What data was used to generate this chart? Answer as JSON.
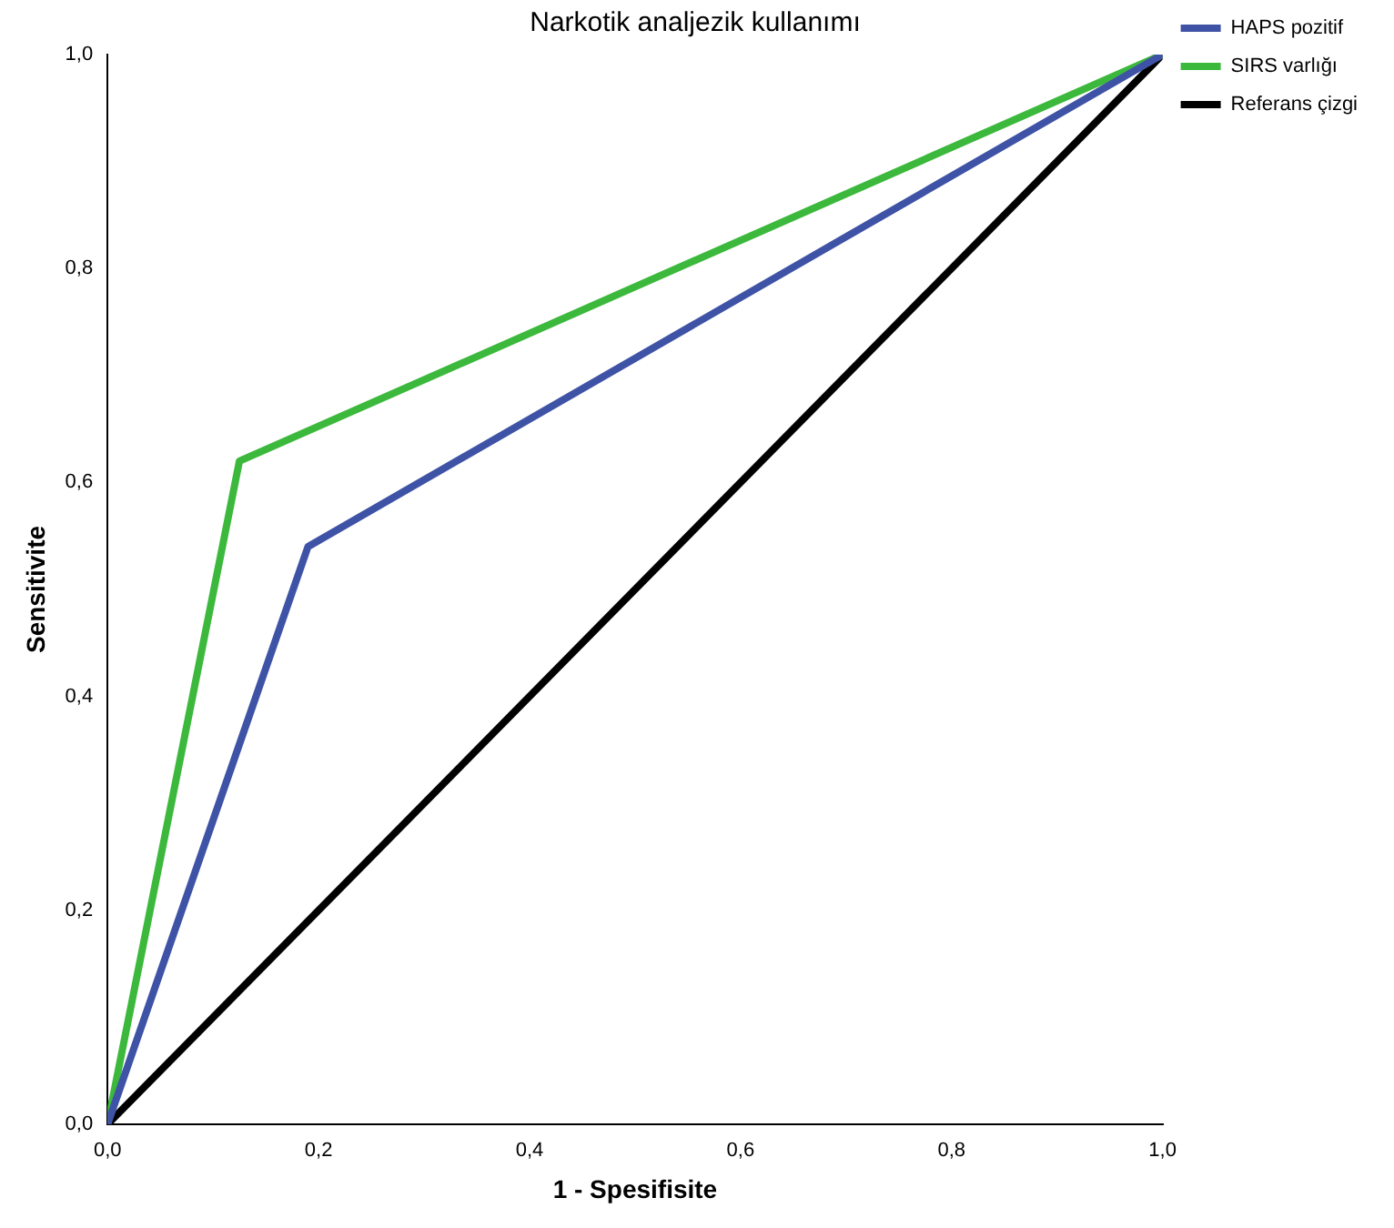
{
  "chart_data": {
    "type": "line",
    "title": "Narkotik analjezik kullanımı",
    "xlabel": "1 - Spesifisite",
    "ylabel": "Sensitivite",
    "series": [
      {
        "name": "HAPS pozitif",
        "color": "#3f53a6",
        "x": [
          0,
          0.19,
          1
        ],
        "values": [
          0,
          0.54,
          1
        ]
      },
      {
        "name": "SIRS varlığı",
        "color": "#3cb93c",
        "x": [
          0,
          0.125,
          1
        ],
        "values": [
          0,
          0.62,
          1
        ]
      },
      {
        "name": "Referans çizgi",
        "color": "#000000",
        "x": [
          0,
          1
        ],
        "values": [
          0,
          1
        ]
      }
    ],
    "xlim": [
      0,
      1
    ],
    "ylim": [
      0,
      1
    ],
    "xticks": [
      {
        "value": 0,
        "label": "0,0"
      },
      {
        "value": 0.2,
        "label": "0,2"
      },
      {
        "value": 0.4,
        "label": "0,4"
      },
      {
        "value": 0.6,
        "label": "0,6"
      },
      {
        "value": 0.8,
        "label": "0,8"
      },
      {
        "value": 1,
        "label": "1,0"
      }
    ],
    "yticks": [
      {
        "value": 0,
        "label": "0,0"
      },
      {
        "value": 0.2,
        "label": "0,2"
      },
      {
        "value": 0.4,
        "label": "0,4"
      },
      {
        "value": 0.6,
        "label": "0,6"
      },
      {
        "value": 0.8,
        "label": "0,8"
      },
      {
        "value": 1,
        "label": "1,0"
      }
    ],
    "grid": false,
    "legend": "right",
    "marker": "none",
    "line_style": "solid"
  }
}
